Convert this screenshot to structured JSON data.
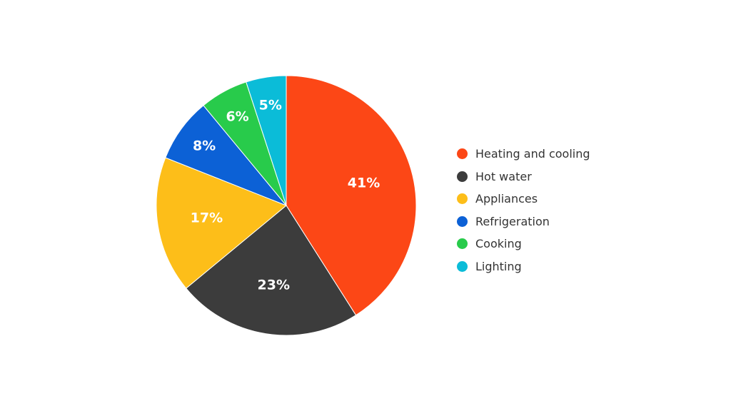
{
  "chart_data": {
    "type": "pie",
    "title": "",
    "start_angle_deg": 0,
    "direction": "clockwise",
    "legend_position": "right",
    "slices": [
      {
        "label": "Heating and cooling",
        "value": 41,
        "display": "41%",
        "color": "#FC4716"
      },
      {
        "label": "Hot water",
        "value": 23,
        "display": "23%",
        "color": "#3C3C3C"
      },
      {
        "label": "Appliances",
        "value": 17,
        "display": "17%",
        "color": "#FDBE19"
      },
      {
        "label": "Refrigeration",
        "value": 8,
        "display": "8%",
        "color": "#0C61D6"
      },
      {
        "label": "Cooking",
        "value": 6,
        "display": "6%",
        "color": "#28CB4B"
      },
      {
        "label": "Lighting",
        "value": 5,
        "display": "5%",
        "color": "#0BBCD8"
      }
    ]
  }
}
